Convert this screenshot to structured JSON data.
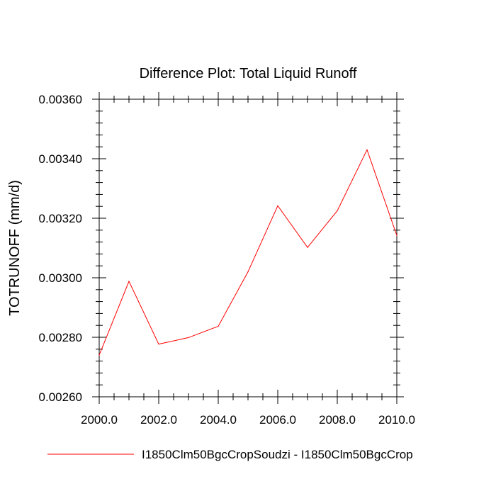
{
  "chart_data": {
    "type": "line",
    "title": "Difference Plot: Total Liquid Runoff",
    "xlabel": "",
    "ylabel": "TOTRUNOFF  (mm/d)",
    "xlim": [
      2000.0,
      2010.0
    ],
    "ylim": [
      0.0026,
      0.0036
    ],
    "x_ticks": [
      "2000.0",
      "2002.0",
      "2004.0",
      "2006.0",
      "2008.0",
      "2010.0"
    ],
    "x_tick_values": [
      2000,
      2002,
      2004,
      2006,
      2008,
      2010
    ],
    "y_ticks": [
      "0.00260",
      "0.00280",
      "0.00300",
      "0.00320",
      "0.00340",
      "0.00360"
    ],
    "y_tick_values": [
      0.0026,
      0.0028,
      0.003,
      0.0032,
      0.0034,
      0.0036
    ],
    "grid": false,
    "legend_position": "bottom",
    "x": [
      2000,
      2001,
      2002,
      2003,
      2004,
      2005,
      2006,
      2007,
      2008,
      2009,
      2010
    ],
    "series": [
      {
        "name": "I1850Clm50BgcCropSoudzi - I1850Clm50BgcCrop",
        "color": "#ff0000",
        "values": [
          0.00274,
          0.002988,
          0.002777,
          0.002799,
          0.002837,
          0.00302,
          0.003242,
          0.003102,
          0.003225,
          0.00343,
          0.003142
        ]
      }
    ]
  }
}
